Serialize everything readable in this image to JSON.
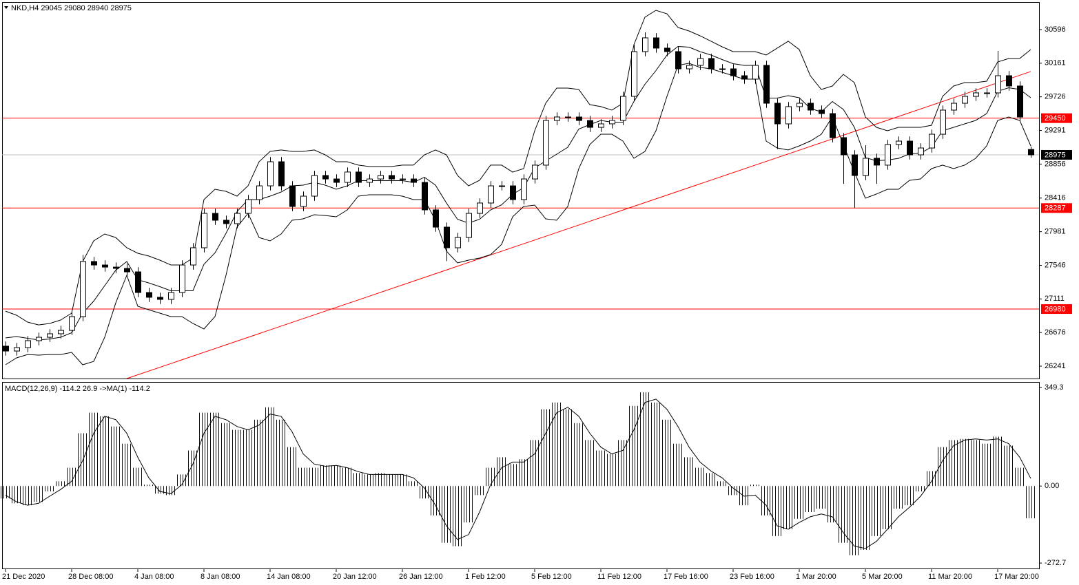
{
  "chart_data": [
    {
      "type": "candlestick",
      "title": "NKD,H4  29045 29080 28940 28975",
      "categories": [
        "21 Dec 2020",
        null,
        null,
        null,
        null,
        null,
        "28 Dec 08:00",
        null,
        null,
        null,
        null,
        null,
        "4 Jan 08:00",
        null,
        null,
        null,
        null,
        null,
        "8 Jan 08:00",
        null,
        null,
        null,
        null,
        null,
        "14 Jan 08:00",
        null,
        null,
        null,
        null,
        null,
        "20 Jan 12:00",
        null,
        null,
        null,
        null,
        null,
        "26 Jan 12:00",
        null,
        null,
        null,
        null,
        null,
        "1 Feb 12:00",
        null,
        null,
        null,
        null,
        null,
        "5 Feb 12:00",
        null,
        null,
        null,
        null,
        null,
        "11 Feb 12:00",
        null,
        null,
        null,
        null,
        null,
        "17 Feb 16:00",
        null,
        null,
        null,
        null,
        null,
        "23 Feb 16:00",
        null,
        null,
        null,
        null,
        null,
        "1 Mar 20:00",
        null,
        null,
        null,
        null,
        null,
        "5 Mar 20:00",
        null,
        null,
        null,
        null,
        null,
        "11 Mar 20:00",
        null,
        null,
        null,
        null,
        null,
        "17 Mar 20:00",
        null,
        null,
        null
      ],
      "open": [
        26500,
        26437,
        26481,
        26571,
        26615,
        26660,
        26704,
        26882,
        27595,
        27550,
        27523,
        27506,
        27461,
        27194,
        27132,
        27105,
        27194,
        27550,
        27773,
        28218,
        28129,
        28085,
        28218,
        28396,
        28574,
        28886,
        28574,
        28307,
        28441,
        28708,
        28663,
        28619,
        28753,
        28619,
        28663,
        28708,
        28663,
        28663,
        28619,
        28263,
        28040,
        27773,
        27906,
        28218,
        28352,
        28574,
        28574,
        28396,
        28663,
        28842,
        29420,
        29465,
        29465,
        29420,
        29331,
        29376,
        29420,
        29732,
        30311,
        30489,
        30356,
        30311,
        30088,
        30133,
        30222,
        30088,
        30088,
        29999,
        29955,
        30133,
        29643,
        29376,
        29599,
        29643,
        29554,
        29509,
        29198,
        28975,
        28708,
        28931,
        28842,
        29109,
        29153,
        28975,
        29064,
        29242,
        29554,
        29643,
        29732,
        29777,
        29777,
        29999,
        29866,
        29045
      ],
      "high": [
        26560,
        26541,
        26631,
        26675,
        26720,
        26764,
        26942,
        27680,
        27655,
        27610,
        27583,
        27566,
        27521,
        27254,
        27192,
        27254,
        27610,
        27833,
        28278,
        28278,
        28189,
        28278,
        28456,
        28634,
        28946,
        28946,
        28634,
        28501,
        28768,
        28768,
        28723,
        28813,
        28813,
        28723,
        28768,
        28768,
        28723,
        28723,
        28679,
        28323,
        28100,
        27966,
        28278,
        28412,
        28634,
        28634,
        28634,
        28723,
        28902,
        29480,
        29525,
        29525,
        29525,
        29480,
        29436,
        29480,
        29792,
        30400,
        30560,
        30549,
        30416,
        30371,
        30193,
        30282,
        30282,
        30148,
        30148,
        30059,
        30193,
        30193,
        29703,
        29659,
        29703,
        29703,
        29614,
        29569,
        29258,
        29035,
        29100,
        28991,
        29169,
        29213,
        29213,
        29124,
        29302,
        29614,
        29703,
        29792,
        29837,
        29837,
        30320,
        30059,
        29926,
        29080
      ],
      "low": [
        26377,
        26377,
        26421,
        26511,
        26555,
        26600,
        26644,
        26822,
        27490,
        27463,
        27446,
        27401,
        27134,
        27072,
        27045,
        27045,
        27134,
        27490,
        27713,
        28069,
        28025,
        28025,
        28158,
        28336,
        28514,
        28514,
        28247,
        28247,
        28381,
        28603,
        28559,
        28559,
        28559,
        28559,
        28603,
        28603,
        28603,
        28559,
        28203,
        27980,
        27600,
        27713,
        27846,
        28158,
        28292,
        28514,
        28336,
        28336,
        28603,
        28782,
        29360,
        29405,
        29360,
        29271,
        29271,
        29316,
        29360,
        29672,
        30251,
        30296,
        30251,
        30028,
        30028,
        30073,
        30028,
        30028,
        29939,
        29895,
        29895,
        29583,
        29050,
        29316,
        29539,
        29494,
        29449,
        29138,
        28600,
        28290,
        28648,
        28600,
        28782,
        29049,
        28915,
        28915,
        29004,
        29182,
        29494,
        29583,
        29672,
        29717,
        29717,
        29806,
        29405,
        28940
      ],
      "close": [
        26437,
        26481,
        26571,
        26615,
        26660,
        26704,
        26882,
        27595,
        27550,
        27523,
        27506,
        27461,
        27194,
        27132,
        27105,
        27194,
        27550,
        27773,
        28218,
        28129,
        28085,
        28218,
        28396,
        28574,
        28886,
        28574,
        28307,
        28441,
        28708,
        28663,
        28619,
        28753,
        28619,
        28663,
        28708,
        28663,
        28663,
        28619,
        28263,
        28040,
        27773,
        27906,
        28218,
        28352,
        28574,
        28574,
        28396,
        28663,
        28842,
        29420,
        29465,
        29465,
        29420,
        29331,
        29376,
        29420,
        29732,
        30311,
        30489,
        30356,
        30311,
        30088,
        30133,
        30222,
        30088,
        30088,
        29999,
        29955,
        30133,
        29643,
        29376,
        29599,
        29643,
        29554,
        29509,
        29198,
        28975,
        28708,
        28931,
        28842,
        29109,
        29153,
        28975,
        29064,
        29242,
        29554,
        29643,
        29732,
        29777,
        29777,
        29999,
        29866,
        29465,
        28975
      ],
      "up_color": "#ffffff",
      "down_color": "#000000",
      "candle_stroke": "#000000",
      "bands": {
        "color": "#000000",
        "upper": [
          26953,
          26900,
          26811,
          26775,
          26793,
          26838,
          26927,
          27595,
          27862,
          27951,
          27906,
          27773,
          27702,
          27666,
          27613,
          27550,
          27550,
          27639,
          28396,
          28530,
          28503,
          28441,
          28574,
          28886,
          29020,
          29038,
          29020,
          29020,
          29038,
          28975,
          28886,
          28886,
          28842,
          28824,
          28824,
          28824,
          28842,
          28842,
          28975,
          29038,
          28975,
          28708,
          28574,
          28646,
          28842,
          28842,
          28752,
          28797,
          29287,
          29643,
          29839,
          29839,
          29821,
          29625,
          29599,
          29554,
          29643,
          30400,
          30756,
          30845,
          30801,
          30623,
          30578,
          30516,
          30445,
          30373,
          30311,
          30311,
          30311,
          30267,
          30356,
          30445,
          30338,
          29999,
          29821,
          29866,
          30017,
          29910,
          29465,
          29331,
          29287,
          29331,
          29331,
          29331,
          29358,
          29732,
          29866,
          29910,
          29910,
          29928,
          30177,
          30222,
          30222,
          30338
        ],
        "middle": [
          26606,
          26624,
          26602,
          26580,
          26593,
          26615,
          26673,
          26927,
          27083,
          27283,
          27483,
          27595,
          27359,
          27318,
          27270,
          27216,
          27216,
          27216,
          27559,
          27706,
          27960,
          28240,
          28396,
          28396,
          28441,
          28494,
          28574,
          28583,
          28619,
          28583,
          28530,
          28574,
          28641,
          28641,
          28641,
          28641,
          28641,
          28619,
          28685,
          28583,
          28351,
          28142,
          28093,
          28142,
          28263,
          28329,
          28463,
          28552,
          28806,
          28895,
          28984,
          29073,
          29309,
          29367,
          29420,
          29398,
          29398,
          29665,
          29888,
          30066,
          30266,
          30378,
          30369,
          30311,
          30266,
          30208,
          30155,
          30133,
          30133,
          29710,
          29710,
          29741,
          29714,
          29576,
          29531,
          29665,
          29563,
          29331,
          28939,
          28899,
          28908,
          28930,
          28988,
          28997,
          29077,
          29287,
          29331,
          29376,
          29420,
          29509,
          29798,
          29843,
          29821,
          29714
        ],
        "lower": [
          26259,
          26348,
          26392,
          26384,
          26392,
          26392,
          26419,
          26259,
          26303,
          26615,
          27060,
          27417,
          27016,
          26971,
          26927,
          26882,
          26882,
          26793,
          26722,
          26882,
          27417,
          28040,
          28218,
          27906,
          27862,
          27951,
          28129,
          28147,
          28200,
          28191,
          28174,
          28263,
          28441,
          28459,
          28459,
          28459,
          28441,
          28396,
          28396,
          28129,
          27728,
          27577,
          27613,
          27639,
          27684,
          27817,
          28174,
          28307,
          28325,
          28147,
          28129,
          28307,
          28797,
          29109,
          29242,
          29242,
          29153,
          28931,
          29020,
          29287,
          29732,
          30133,
          30160,
          30106,
          30088,
          30044,
          29999,
          29955,
          29955,
          29153,
          29064,
          29038,
          29091,
          29153,
          29242,
          29465,
          29109,
          28752,
          28414,
          28468,
          28530,
          28530,
          28646,
          28663,
          28797,
          28842,
          28797,
          28842,
          28931,
          29091,
          29420,
          29465,
          29420,
          29091
        ]
      },
      "trendline": {
        "x": [
          11,
          93
        ],
        "values": [
          26081,
          30053
        ],
        "color": "#ff0000"
      },
      "levels": [
        {
          "value": 29450,
          "color": "#ff0000"
        },
        {
          "value": 28287,
          "color": "#ff0000"
        },
        {
          "value": 26980,
          "color": "#ff0000"
        }
      ],
      "last_price": {
        "value": 28975,
        "color": "#000000",
        "line_color": "#c0c0c0"
      },
      "ylim": [
        26081,
        30952
      ],
      "yticks": [
        30596,
        30161,
        29726,
        29291,
        28856,
        28416,
        27981,
        27546,
        27111,
        26676,
        26241
      ],
      "grid": false
    },
    {
      "type": "macd",
      "title": "MACD(12,26,9) -114.2 26.9  ->MA(1) -114.2",
      "histogram": [
        -44,
        -61,
        -68,
        -56,
        -19,
        17,
        65,
        187,
        260,
        247,
        211,
        150,
        65,
        5,
        -27,
        -32,
        41,
        126,
        260,
        260,
        223,
        199,
        199,
        235,
        279,
        235,
        138,
        65,
        65,
        73,
        73,
        65,
        46,
        41,
        46,
        41,
        41,
        17,
        -44,
        -104,
        -201,
        -213,
        -129,
        -32,
        65,
        102,
        78,
        95,
        163,
        272,
        296,
        272,
        223,
        163,
        126,
        114,
        163,
        284,
        332,
        296,
        235,
        150,
        102,
        65,
        46,
        17,
        -32,
        -68,
        5,
        -104,
        -177,
        -153,
        -116,
        -92,
        -80,
        -129,
        -201,
        -245,
        -226,
        -177,
        -153,
        -80,
        -68,
        -19,
        53,
        138,
        163,
        167,
        163,
        150,
        175,
        143,
        65,
        -114.2
      ],
      "signal": [
        -32,
        -56,
        -68,
        -61,
        -36,
        -12,
        17,
        90,
        187,
        247,
        235,
        187,
        102,
        29,
        -19,
        -27,
        5,
        78,
        187,
        247,
        235,
        211,
        199,
        216,
        255,
        247,
        192,
        114,
        78,
        70,
        73,
        65,
        51,
        41,
        41,
        41,
        41,
        29,
        -7,
        -68,
        -141,
        -189,
        -172,
        -92,
        5,
        65,
        85,
        85,
        114,
        187,
        260,
        279,
        247,
        187,
        138,
        114,
        126,
        199,
        296,
        308,
        272,
        211,
        138,
        85,
        53,
        29,
        -7,
        -36,
        -32,
        -68,
        -141,
        -153,
        -129,
        -109,
        -99,
        -109,
        -165,
        -213,
        -221,
        -196,
        -153,
        -109,
        -75,
        -36,
        17,
        90,
        143,
        163,
        167,
        163,
        167,
        150,
        102,
        26.9
      ],
      "histogram_color": "#000080",
      "signal_color": "#000000",
      "ylim": [
        -292,
        368.7
      ],
      "yticks": [
        349.3,
        {
          "value": 0,
          "label": "0.00"
        },
        -272.7
      ]
    }
  ]
}
